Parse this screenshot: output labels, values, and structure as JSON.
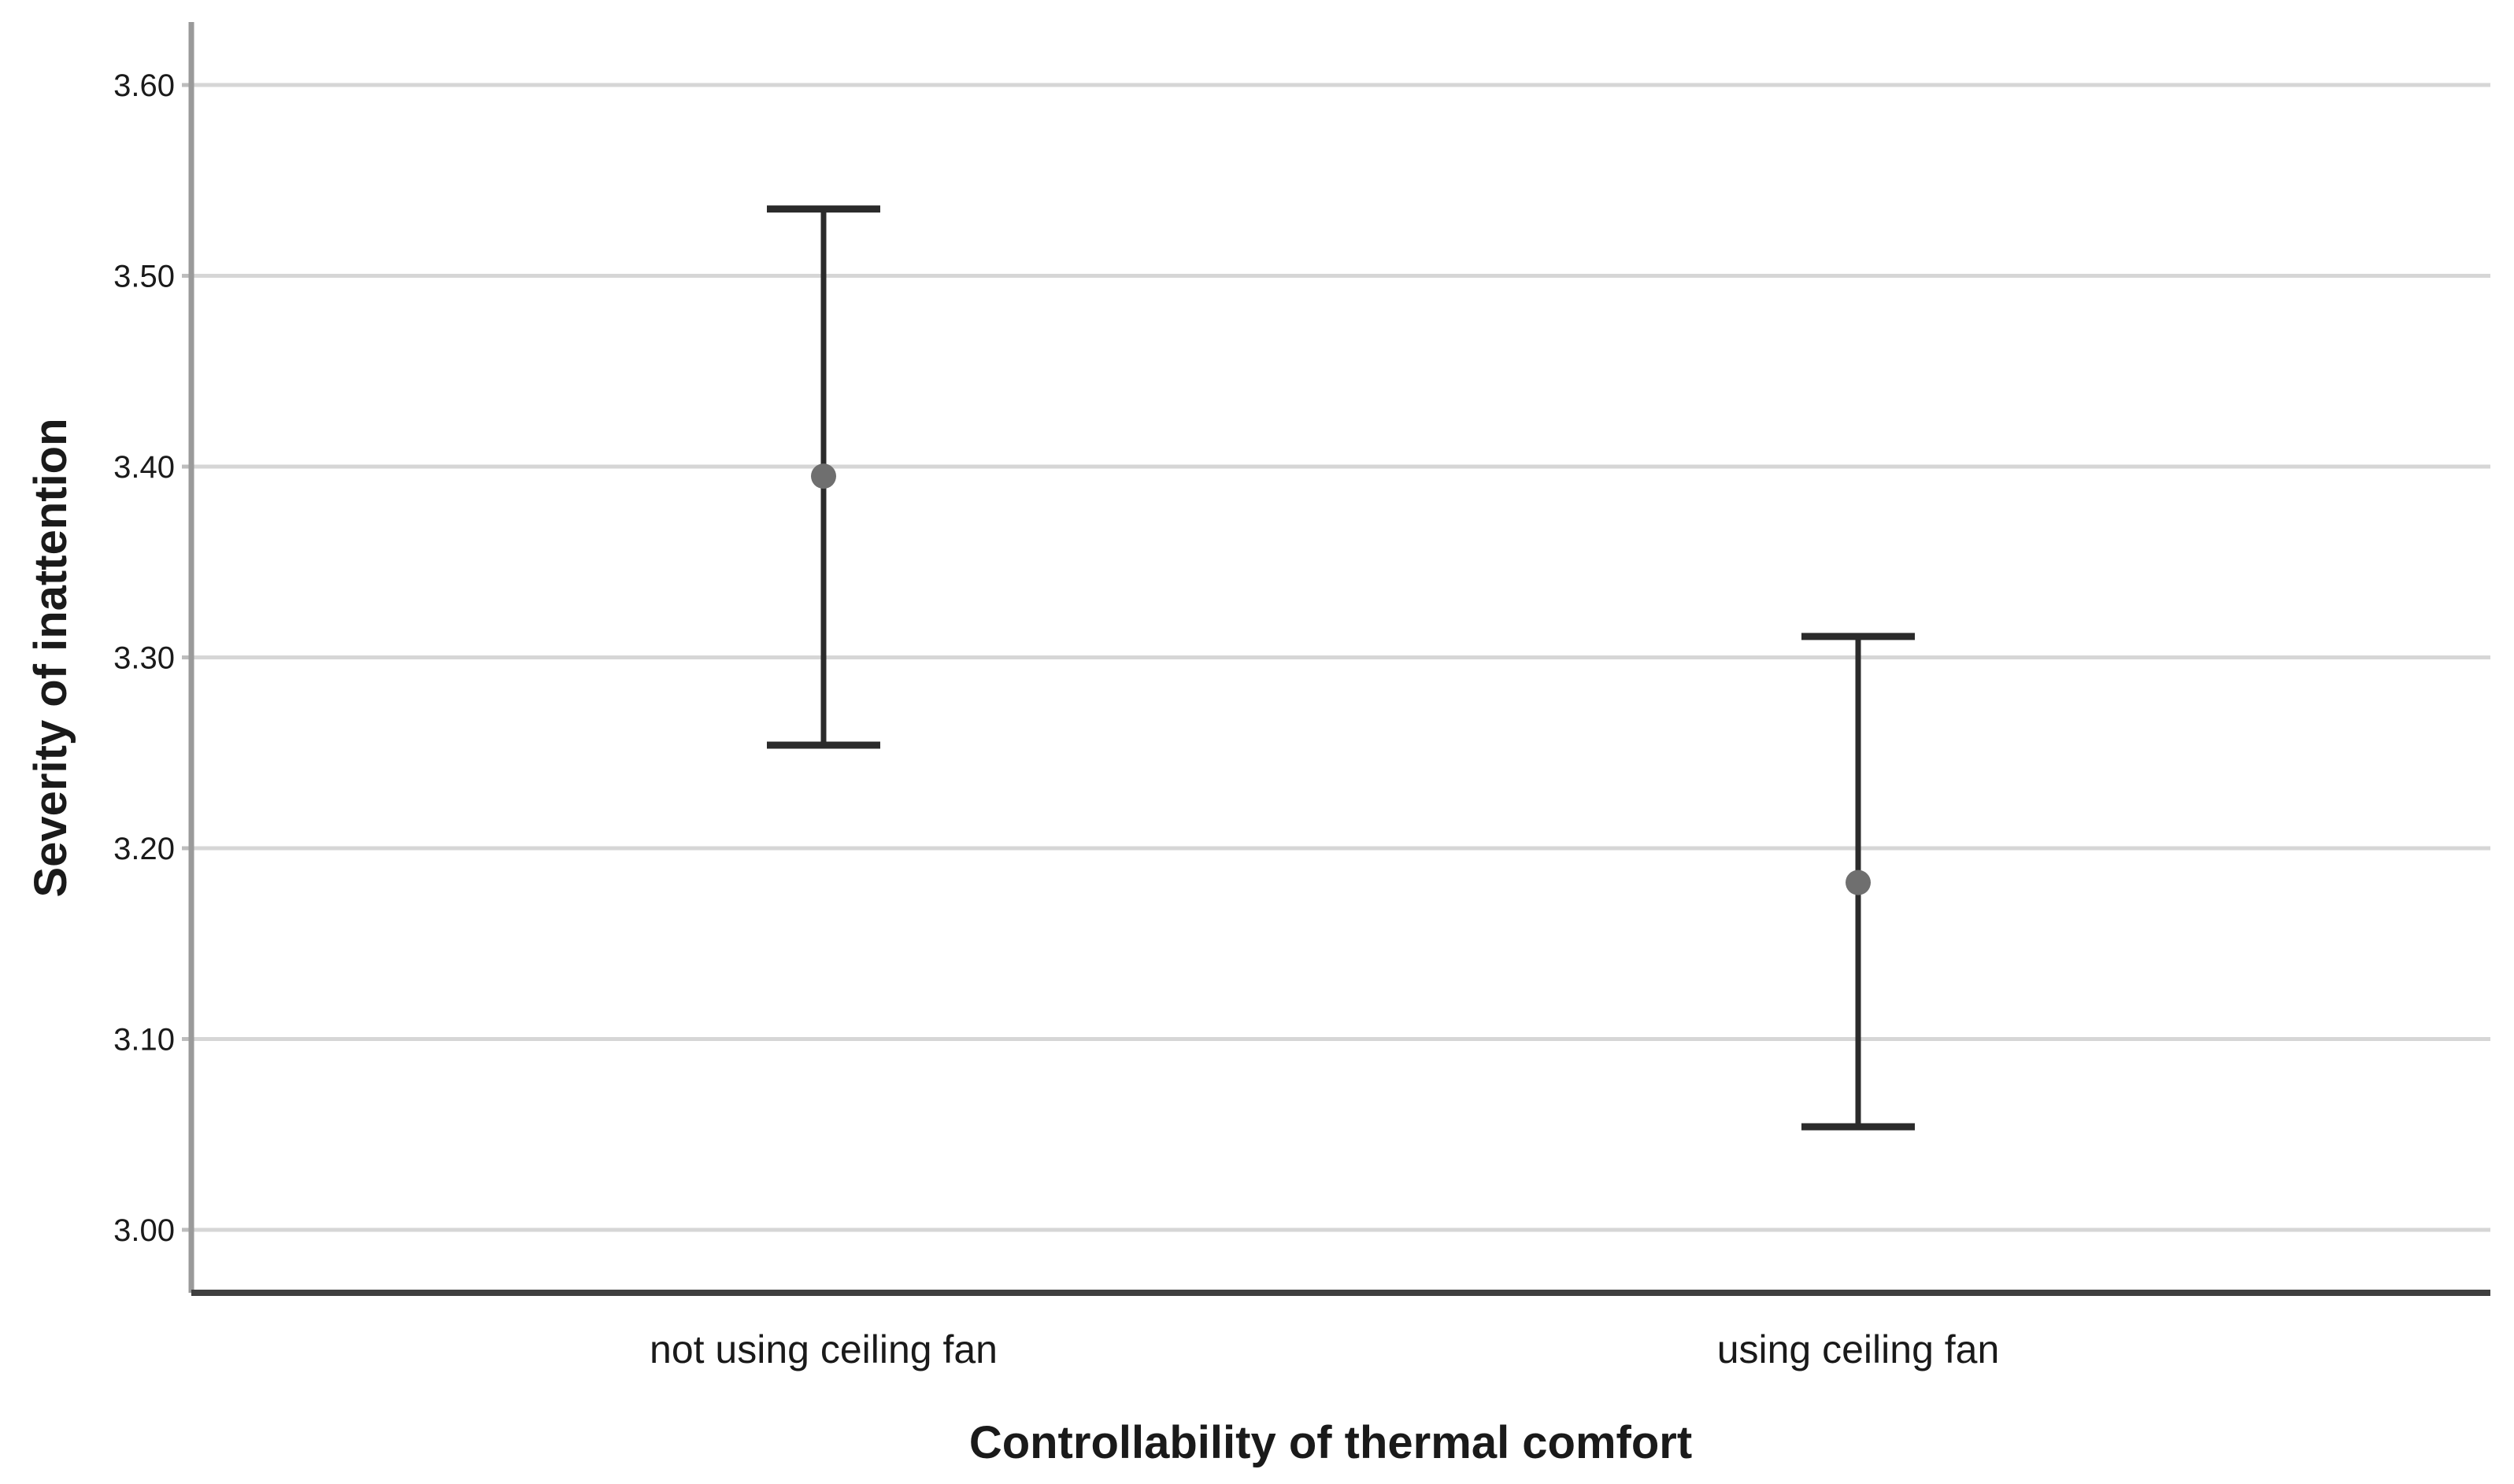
{
  "chart_data": {
    "type": "errorbar",
    "categories": [
      "not using ceiling fan",
      "using ceiling fan"
    ],
    "series": [
      {
        "name": "mean",
        "values": [
          3.395,
          3.182
        ],
        "ci_low": [
          3.254,
          3.054
        ],
        "ci_high": [
          3.535,
          3.311
        ]
      }
    ],
    "xlabel": "Controllability of thermal comfort",
    "ylabel": "Severity of inattention",
    "y_tick_values": [
      3.6,
      3.5,
      3.4,
      3.3,
      3.2,
      3.1,
      3.0
    ],
    "y_tick_labels": [
      "3.60",
      "3.50",
      "3.40",
      "3.30",
      "3.20",
      "3.10",
      "3.00"
    ],
    "ylim": [
      2.967,
      3.633
    ],
    "grid": "horizontal",
    "legend": "none",
    "colors": {
      "background": "#ffffff",
      "gridline": "#d6d6d6",
      "tick_mark": "#bdbdbd",
      "axis_left": "#9a9a9a",
      "axis_bottom": "#3f3f3f",
      "error_bar": "#2b2b2b",
      "mean_point": "#6f6f6f",
      "text": "#1a1a1a"
    }
  }
}
